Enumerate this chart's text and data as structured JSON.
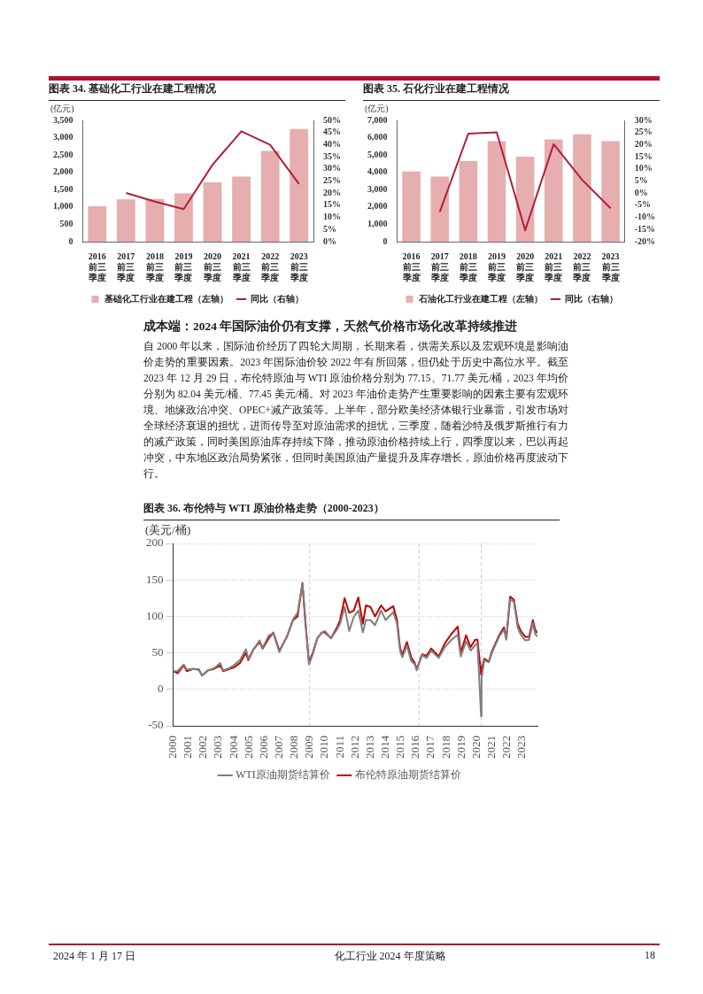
{
  "chart_data": [
    {
      "type": "bar",
      "title": "图表 34. 基础化工行业在建工程情况",
      "ylabel": "(亿元)",
      "categories": [
        "2016前三季度",
        "2017前三季度",
        "2018前三季度",
        "2019前三季度",
        "2020前三季度",
        "2021前三季度",
        "2022前三季度",
        "2023前三季度"
      ],
      "series": [
        {
          "name": "基础化工行业在建工程（左轴）",
          "type": "bar",
          "color": "#e6aeae",
          "values": [
            1020,
            1220,
            1230,
            1390,
            1710,
            1880,
            2620,
            3250
          ]
        },
        {
          "name": "同比（右轴）",
          "type": "line",
          "axis": "y2",
          "color": "#b01e3c",
          "values": [
            null,
            20.1,
            16.5,
            13.4,
            31.7,
            45.5,
            39.9,
            23.8
          ]
        }
      ],
      "ylim": [
        0,
        3500
      ],
      "yticks": [
        0,
        {
          "value": 500,
          "label": "500"
        },
        {
          "value": 1000,
          "label": "1,000"
        },
        {
          "value": 1500,
          "label": "1,500"
        },
        {
          "value": 2000,
          "label": "2,000"
        },
        {
          "value": 2500,
          "label": "2,500"
        },
        {
          "value": 3000,
          "label": "3,000"
        },
        {
          "value": 3500,
          "label": "3,500"
        }
      ],
      "y2lim": [
        0,
        50
      ],
      "y2ticks": [
        {
          "value": 0,
          "label": "0%"
        },
        {
          "value": 5,
          "label": "5%"
        },
        {
          "value": 10,
          "label": "10%"
        },
        {
          "value": 15,
          "label": "15%"
        },
        {
          "value": 20,
          "label": "20%"
        },
        {
          "value": 25,
          "label": "25%"
        },
        {
          "value": 30,
          "label": "30%"
        },
        {
          "value": 35,
          "label": "35%"
        },
        {
          "value": 40,
          "label": "40%"
        },
        {
          "value": 45,
          "label": "45%"
        },
        {
          "value": 50,
          "label": "50%"
        }
      ],
      "legend": "bottom"
    },
    {
      "type": "bar",
      "title": "图表 35. 石化行业在建工程情况",
      "ylabel": "(亿元)",
      "categories": [
        "2016前三季度",
        "2017前三季度",
        "2018前三季度",
        "2019前三季度",
        "2020前三季度",
        "2021前三季度",
        "2022前三季度",
        "2023前三季度"
      ],
      "series": [
        {
          "name": "石油化工行业在建工程（左轴）",
          "type": "bar",
          "color": "#e6aeae",
          "values": [
            4050,
            3750,
            4650,
            5800,
            4900,
            5900,
            6200,
            5800
          ]
        },
        {
          "name": "同比（右轴）",
          "type": "line",
          "axis": "y2",
          "color": "#b01e3c",
          "values": [
            null,
            -7.7,
            24.5,
            25.1,
            -15.3,
            20.2,
            5.5,
            -6.2
          ]
        }
      ],
      "ylim": [
        0,
        7000
      ],
      "yticks": [
        0,
        {
          "value": 1000,
          "label": "1,000"
        },
        {
          "value": 2000,
          "label": "2,000"
        },
        {
          "value": 3000,
          "label": "3,000"
        },
        {
          "value": 4000,
          "label": "4,000"
        },
        {
          "value": 5000,
          "label": "5,000"
        },
        {
          "value": 6000,
          "label": "6,000"
        },
        {
          "value": 7000,
          "label": "7,000"
        }
      ],
      "y2lim": [
        -20,
        30
      ],
      "y2ticks": [
        {
          "value": -20,
          "label": "-20%"
        },
        {
          "value": -15,
          "label": "-15%"
        },
        {
          "value": -10,
          "label": "-10%"
        },
        {
          "value": -5,
          "label": "-5%"
        },
        {
          "value": 0,
          "label": "0%"
        },
        {
          "value": 5,
          "label": "5%"
        },
        {
          "value": 10,
          "label": "10%"
        },
        {
          "value": 15,
          "label": "15%"
        },
        {
          "value": 20,
          "label": "20%"
        },
        {
          "value": 25,
          "label": "25%"
        },
        {
          "value": 30,
          "label": "30%"
        }
      ],
      "legend": "bottom"
    },
    {
      "type": "other",
      "title": "成本端：2024 年国际油价仍有支撑，天然气价格市场化改革持续推进",
      "annotations": [
        "自 2000 年以来，国际油价经历了四轮大周期，长期来看，供需关系以及宏观环境是影响油价走势的重要因素。2023 年国际油价较 2022 年有所回落，但仍处于历史中高位水平。截至 2023 年 12 月 29 日，布伦特原油与 WTI 原油价格分别为 77.15、71.77 美元/桶，2023 年均价分别为 82.04 美元/桶、77.45 美元/桶。对 2023 年油价走势产生重要影响的因素主要有宏观环境、地缘政治冲突、OPEC+减产政策等。上半年，部分欧美经济体银行业暴雷，引发市场对全球经济衰退的担忧，进而传导至对原油需求的担忧，三季度，随着沙特及俄罗斯推行有力的减产政策，同时美国原油库存持续下降，推动原油价格持续上行，四季度以来，巴以再起冲突，中东地区政治局势紧张，但同时美国原油产量提升及库存增长，原油价格再度波动下行。"
      ]
    },
    {
      "type": "line",
      "title": "图表 36. 布伦特与 WTI 原油价格走势（2000-2023）",
      "ylabel": "(美元/桶)",
      "series": [
        {
          "name": "WTI原油期货结算价",
          "color": "#7f7f7f",
          "x": [
            2000.0,
            2000.3,
            2000.7,
            2000.9,
            2001.3,
            2001.7,
            2001.9,
            2002.3,
            2002.7,
            2003.1,
            2003.3,
            2003.7,
            2004.0,
            2004.4,
            2004.8,
            2004.95,
            2005.3,
            2005.7,
            2005.9,
            2006.3,
            2006.6,
            2007.0,
            2007.5,
            2007.9,
            2008.2,
            2008.52,
            2008.7,
            2008.95,
            2009.2,
            2009.5,
            2009.8,
            2010.0,
            2010.4,
            2010.8,
            2011.0,
            2011.3,
            2011.6,
            2011.9,
            2012.2,
            2012.5,
            2012.7,
            2013.0,
            2013.3,
            2013.7,
            2014.0,
            2014.5,
            2014.75,
            2014.95,
            2015.1,
            2015.4,
            2015.7,
            2015.9,
            2016.05,
            2016.4,
            2016.7,
            2017.0,
            2017.5,
            2017.9,
            2018.3,
            2018.75,
            2018.95,
            2019.3,
            2019.6,
            2019.9,
            2020.05,
            2020.29,
            2020.32,
            2020.5,
            2020.8,
            2021.0,
            2021.5,
            2021.8,
            2021.95,
            2022.2,
            2022.45,
            2022.7,
            2022.9,
            2023.2,
            2023.45,
            2023.7,
            2023.85,
            2023.99
          ],
          "values": [
            25,
            25,
            34,
            27,
            28,
            27,
            19,
            26,
            29,
            36,
            26,
            29,
            33,
            40,
            55,
            42,
            55,
            67,
            57,
            74,
            77,
            51,
            73,
            96,
            105,
            145,
            100,
            34,
            48,
            70,
            78,
            80,
            70,
            82,
            90,
            113,
            80,
            99,
            108,
            78,
            95,
            95,
            88,
            108,
            95,
            106,
            90,
            53,
            44,
            60,
            38,
            35,
            26,
            47,
            43,
            53,
            43,
            58,
            67,
            75,
            45,
            66,
            53,
            61,
            62,
            -37,
            15,
            40,
            37,
            50,
            73,
            82,
            68,
            123,
            120,
            85,
            75,
            67,
            68,
            91,
            76,
            72
          ]
        },
        {
          "name": "布伦特原油期货结算价",
          "color": "#c00000",
          "x": [
            2000.0,
            2000.3,
            2000.7,
            2000.9,
            2001.3,
            2001.7,
            2001.9,
            2002.3,
            2002.7,
            2003.1,
            2003.3,
            2003.7,
            2004.0,
            2004.4,
            2004.8,
            2004.95,
            2005.3,
            2005.7,
            2005.9,
            2006.3,
            2006.6,
            2007.0,
            2007.5,
            2007.9,
            2008.2,
            2008.52,
            2008.7,
            2008.95,
            2009.2,
            2009.5,
            2009.8,
            2010.0,
            2010.4,
            2010.8,
            2011.0,
            2011.3,
            2011.6,
            2011.9,
            2012.2,
            2012.5,
            2012.7,
            2013.0,
            2013.3,
            2013.7,
            2014.0,
            2014.5,
            2014.75,
            2014.95,
            2015.1,
            2015.4,
            2015.7,
            2015.9,
            2016.05,
            2016.4,
            2016.7,
            2017.0,
            2017.5,
            2017.9,
            2018.3,
            2018.75,
            2018.95,
            2019.3,
            2019.6,
            2019.9,
            2020.05,
            2020.29,
            2020.32,
            2020.5,
            2020.8,
            2021.0,
            2021.5,
            2021.8,
            2021.95,
            2022.2,
            2022.45,
            2022.7,
            2022.9,
            2023.2,
            2023.45,
            2023.7,
            2023.85,
            2023.99
          ],
          "values": [
            25,
            22,
            33,
            25,
            28,
            27,
            19,
            26,
            28,
            33,
            25,
            28,
            30,
            36,
            50,
            40,
            55,
            65,
            56,
            70,
            78,
            53,
            72,
            95,
            100,
            146,
            95,
            37,
            50,
            70,
            78,
            78,
            70,
            85,
            95,
            125,
            105,
            108,
            126,
            90,
            115,
            113,
            100,
            115,
            107,
            114,
            95,
            57,
            47,
            65,
            43,
            37,
            28,
            48,
            46,
            56,
            45,
            63,
            75,
            86,
            50,
            74,
            58,
            68,
            68,
            20,
            28,
            42,
            38,
            52,
            75,
            85,
            70,
            127,
            123,
            90,
            80,
            72,
            72,
            95,
            82,
            77
          ]
        }
      ],
      "xlim": [
        2000,
        2024
      ],
      "xticks": [
        2000,
        2001,
        2002,
        2003,
        2004,
        2005,
        2006,
        2007,
        2008,
        2009,
        2010,
        2011,
        2012,
        2013,
        2014,
        2015,
        2016,
        2017,
        2018,
        2019,
        2020,
        2021,
        2022,
        2023
      ],
      "ylim": [
        -50,
        200
      ],
      "yticks": [
        -50,
        0,
        50,
        100,
        150,
        200
      ],
      "grid": "y",
      "ref_lines": [
        {
          "axis": "x",
          "value": 2009,
          "color": "#cccccc",
          "line_style": "dashed"
        },
        {
          "axis": "x",
          "value": 2016.2,
          "color": "#cccccc",
          "line_style": "dashed"
        },
        {
          "axis": "x",
          "value": 2020.3,
          "color": "#cccccc",
          "line_style": "dashed"
        }
      ],
      "legend": "bottom"
    },
    {
      "type": "other",
      "annotations": [
        "2024 年 1 月 17 日",
        "化工行业 2024 年度策略",
        "18"
      ]
    }
  ]
}
